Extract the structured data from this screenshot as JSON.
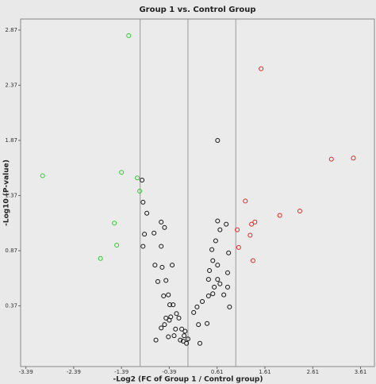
{
  "chart_data": {
    "type": "scatter",
    "title": "Group 1 vs. Control Group",
    "x_label": "-Log2 (FC of Group 1 / Control group)",
    "y_label": "-Log10 (P-value)",
    "xlim": [
      -3.5,
      3.9
    ],
    "ylim": [
      -0.18,
      2.97
    ],
    "xticks": [
      -3.39,
      -2.39,
      -1.39,
      -0.39,
      0.61,
      1.61,
      2.61,
      3.61
    ],
    "yticks": [
      0.37,
      0.87,
      1.37,
      1.87,
      2.37,
      2.87
    ],
    "vlines": [
      -1,
      0,
      1
    ],
    "series": [
      {
        "color": "#2ecc2e",
        "x": [
          -3.04,
          -1.24,
          -1.39,
          -1.06,
          -1.01,
          -1.54,
          -1.49,
          -1.83
        ],
        "values": [
          1.55,
          2.82,
          1.58,
          1.53,
          1.41,
          1.12,
          0.92,
          0.8
        ]
      },
      {
        "color": "#e0281e",
        "x": [
          1.53,
          3.46,
          3.0,
          2.34,
          1.92,
          1.2,
          1.4,
          1.33,
          1.03,
          1.3,
          1.06,
          1.36
        ],
        "values": [
          2.52,
          1.71,
          1.7,
          1.23,
          1.19,
          1.32,
          1.13,
          1.11,
          1.06,
          1.01,
          0.9,
          0.78
        ]
      },
      {
        "color": "#111111",
        "x": [
          -0.96,
          -0.94,
          -0.86,
          -0.91,
          -0.71,
          -0.94,
          -0.56,
          -0.49,
          -0.56,
          -0.69,
          -0.54,
          -0.33,
          -0.46,
          -0.63,
          -0.41,
          -0.51,
          -0.38,
          -0.31,
          -0.24,
          -0.36,
          -0.46,
          -0.49,
          -0.39,
          -0.56,
          -0.19,
          -0.26,
          -0.13,
          -0.08,
          -0.1,
          -0.06,
          0.0,
          -0.03,
          -0.16,
          -0.41,
          -0.67,
          0.19,
          0.12,
          0.22,
          0.4,
          0.25,
          0.62,
          0.62,
          0.67,
          0.8,
          0.58,
          0.5,
          0.52,
          0.45,
          0.62,
          0.85,
          0.62,
          0.43,
          0.55,
          0.67,
          0.83,
          0.75,
          0.83,
          0.43,
          0.3,
          0.52,
          0.87,
          -0.29
        ],
        "values": [
          1.51,
          1.31,
          1.21,
          1.02,
          1.03,
          0.91,
          1.13,
          1.08,
          0.91,
          0.74,
          0.72,
          0.74,
          0.6,
          0.59,
          0.47,
          0.46,
          0.38,
          0.38,
          0.3,
          0.27,
          0.26,
          0.2,
          0.24,
          0.17,
          0.26,
          0.16,
          0.16,
          0.1,
          0.05,
          0.14,
          0.07,
          0.03,
          0.06,
          0.09,
          0.06,
          0.36,
          0.31,
          0.2,
          0.21,
          0.03,
          1.87,
          1.14,
          1.06,
          1.11,
          0.96,
          0.88,
          0.78,
          0.69,
          0.74,
          0.85,
          0.61,
          0.61,
          0.54,
          0.57,
          0.67,
          0.47,
          0.54,
          0.46,
          0.41,
          0.48,
          0.36,
          0.1
        ]
      }
    ]
  }
}
